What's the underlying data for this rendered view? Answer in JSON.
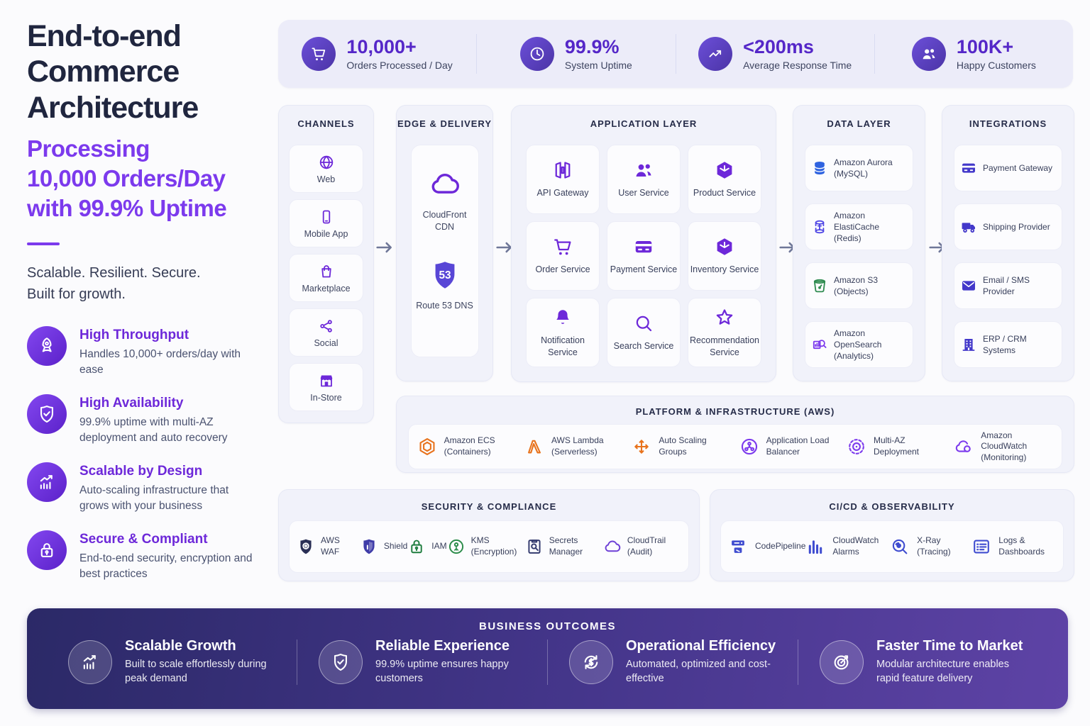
{
  "theme": {
    "accent_purple": "#7c3aed",
    "icon_purple": "#6d28d9",
    "aws_orange": "#e8731d",
    "indigo": "#4338ca",
    "arrow_gray": "#6f7798"
  },
  "hero": {
    "title_lines": [
      "End-to-end",
      "Commerce",
      "Architecture"
    ],
    "subtitle_lines": [
      "Processing",
      "10,000 Orders/Day",
      "with 99.9% Uptime"
    ],
    "tagline_lines": [
      "Scalable. Resilient. Secure.",
      "Built for growth."
    ],
    "features": [
      {
        "icon": "rocket",
        "title": "High Throughput",
        "desc": "Handles 10,000+ orders/day with ease"
      },
      {
        "icon": "shield-check",
        "title": "High Availability",
        "desc": "99.9% uptime with multi-AZ deployment and auto recovery"
      },
      {
        "icon": "chart-growth",
        "title": "Scalable by Design",
        "desc": "Auto-scaling infrastructure that grows with your business"
      },
      {
        "icon": "lock",
        "title": "Secure & Compliant",
        "desc": "End-to-end security, encryption and best practices"
      }
    ]
  },
  "stats": [
    {
      "icon": "cart",
      "value": "10,000+",
      "label": "Orders Processed / Day"
    },
    {
      "icon": "clock",
      "value": "99.9%",
      "label": "System Uptime"
    },
    {
      "icon": "trend-up",
      "value": "<200ms",
      "label": "Average Response Time"
    },
    {
      "icon": "users",
      "value": "100K+",
      "label": "Happy Customers"
    }
  ],
  "channels": {
    "title": "CHANNELS",
    "items": [
      {
        "icon": "globe",
        "label": "Web",
        "color": "#6d28d9"
      },
      {
        "icon": "smartphone",
        "label": "Mobile App",
        "color": "#6d28d9"
      },
      {
        "icon": "bag",
        "label": "Marketplace",
        "color": "#6d28d9"
      },
      {
        "icon": "share",
        "label": "Social",
        "color": "#6d28d9"
      },
      {
        "icon": "store",
        "label": "In-Store",
        "color": "#6d28d9"
      }
    ]
  },
  "edge": {
    "title": "EDGE & DELIVERY",
    "items": [
      {
        "icon": "cloud",
        "label": "CloudFront CDN",
        "color": "#6d28d9"
      },
      {
        "icon": "route53",
        "label": "Route 53 DNS",
        "color": "#5846d6"
      }
    ]
  },
  "application": {
    "title": "APPLICATION LAYER",
    "items": [
      {
        "icon": "api-gateway",
        "label": "API Gateway",
        "color": "#6d28d9"
      },
      {
        "icon": "users",
        "label": "User Service",
        "color": "#6d28d9"
      },
      {
        "icon": "cube",
        "label": "Product Service",
        "color": "#6d28d9"
      },
      {
        "icon": "cart",
        "label": "Order Service",
        "color": "#6d28d9"
      },
      {
        "icon": "credit-card",
        "label": "Payment Service",
        "color": "#6d28d9"
      },
      {
        "icon": "cube",
        "label": "Inventory Service",
        "color": "#6d28d9"
      },
      {
        "icon": "bell",
        "label": "Notification Service",
        "color": "#6d28d9"
      },
      {
        "icon": "search",
        "label": "Search Service",
        "color": "#6d28d9"
      },
      {
        "icon": "star",
        "label": "Recommendation Service",
        "color": "#6d28d9"
      }
    ]
  },
  "data_layer": {
    "title": "DATA LAYER",
    "items": [
      {
        "icon": "database",
        "label": "Amazon Aurora (MySQL)",
        "color": "#2f63e0"
      },
      {
        "icon": "cache",
        "label": "Amazon ElastiCache (Redis)",
        "color": "#4f46e5"
      },
      {
        "icon": "bucket",
        "label": "Amazon S3 (Objects)",
        "color": "#2e8b4f"
      },
      {
        "icon": "opensearch",
        "label": "Amazon OpenSearch (Analytics)",
        "color": "#7c3aed"
      }
    ]
  },
  "integrations": {
    "title": "INTEGRATIONS",
    "items": [
      {
        "icon": "credit-card",
        "label": "Payment Gateway",
        "color": "#4338ca"
      },
      {
        "icon": "truck",
        "label": "Shipping Provider",
        "color": "#4338ca"
      },
      {
        "icon": "mail",
        "label": "Email / SMS Provider",
        "color": "#4338ca"
      },
      {
        "icon": "building",
        "label": "ERP / CRM Systems",
        "color": "#4338ca"
      }
    ]
  },
  "platform": {
    "title": "PLATFORM & INFRASTRUCTURE (AWS)",
    "items": [
      {
        "icon": "hexagon",
        "label": "Amazon ECS (Containers)",
        "color": "#e8731d"
      },
      {
        "icon": "lambda",
        "label": "AWS Lambda (Serverless)",
        "color": "#e8731d"
      },
      {
        "icon": "auto-scaling",
        "label": "Auto Scaling Groups",
        "color": "#e8731d"
      },
      {
        "icon": "alb",
        "label": "Application Load Balancer",
        "color": "#7c3aed"
      },
      {
        "icon": "multi-az",
        "label": "Multi-AZ Deployment",
        "color": "#7c3aed"
      },
      {
        "icon": "cloudwatch",
        "label": "Amazon CloudWatch (Monitoring)",
        "color": "#7c3aed"
      }
    ]
  },
  "security": {
    "title": "SECURITY & COMPLIANCE",
    "items": [
      {
        "icon": "waf",
        "label": "AWS WAF",
        "color": "#2a2f55"
      },
      {
        "icon": "shield",
        "label": "Shield",
        "color": "#3f3ca8"
      },
      {
        "icon": "iam",
        "label": "IAM",
        "color": "#1f7d3f"
      },
      {
        "icon": "kms",
        "label": "KMS (Encryption)",
        "color": "#2c8c4a"
      },
      {
        "icon": "secrets",
        "label": "Secrets Manager",
        "color": "#333a6e"
      },
      {
        "icon": "cloud",
        "label": "CloudTrail (Audit)",
        "color": "#6d3fd6"
      }
    ]
  },
  "cicd": {
    "title": "CI/CD & OBSERVABILITY",
    "items": [
      {
        "icon": "codepipeline",
        "label": "CodePipeline",
        "color": "#3f4cd0"
      },
      {
        "icon": "bars",
        "label": "CloudWatch Alarms",
        "color": "#3f4cd0"
      },
      {
        "icon": "xray",
        "label": "X-Ray (Tracing)",
        "color": "#3f4cd0"
      },
      {
        "icon": "logs",
        "label": "Logs & Dashboards",
        "color": "#3f4cd0"
      }
    ]
  },
  "outcomes": {
    "title": "BUSINESS OUTCOMES",
    "items": [
      {
        "icon": "chart-growth",
        "title": "Scalable Growth",
        "desc": "Built to scale effortlessly during peak demand"
      },
      {
        "icon": "shield-check",
        "title": "Reliable Experience",
        "desc": "99.9% uptime ensures happy customers"
      },
      {
        "icon": "dollar-cycle",
        "title": "Operational Efficiency",
        "desc": "Automated, optimized and cost-effective"
      },
      {
        "icon": "target",
        "title": "Faster Time to Market",
        "desc": "Modular architecture enables rapid feature delivery"
      }
    ]
  }
}
